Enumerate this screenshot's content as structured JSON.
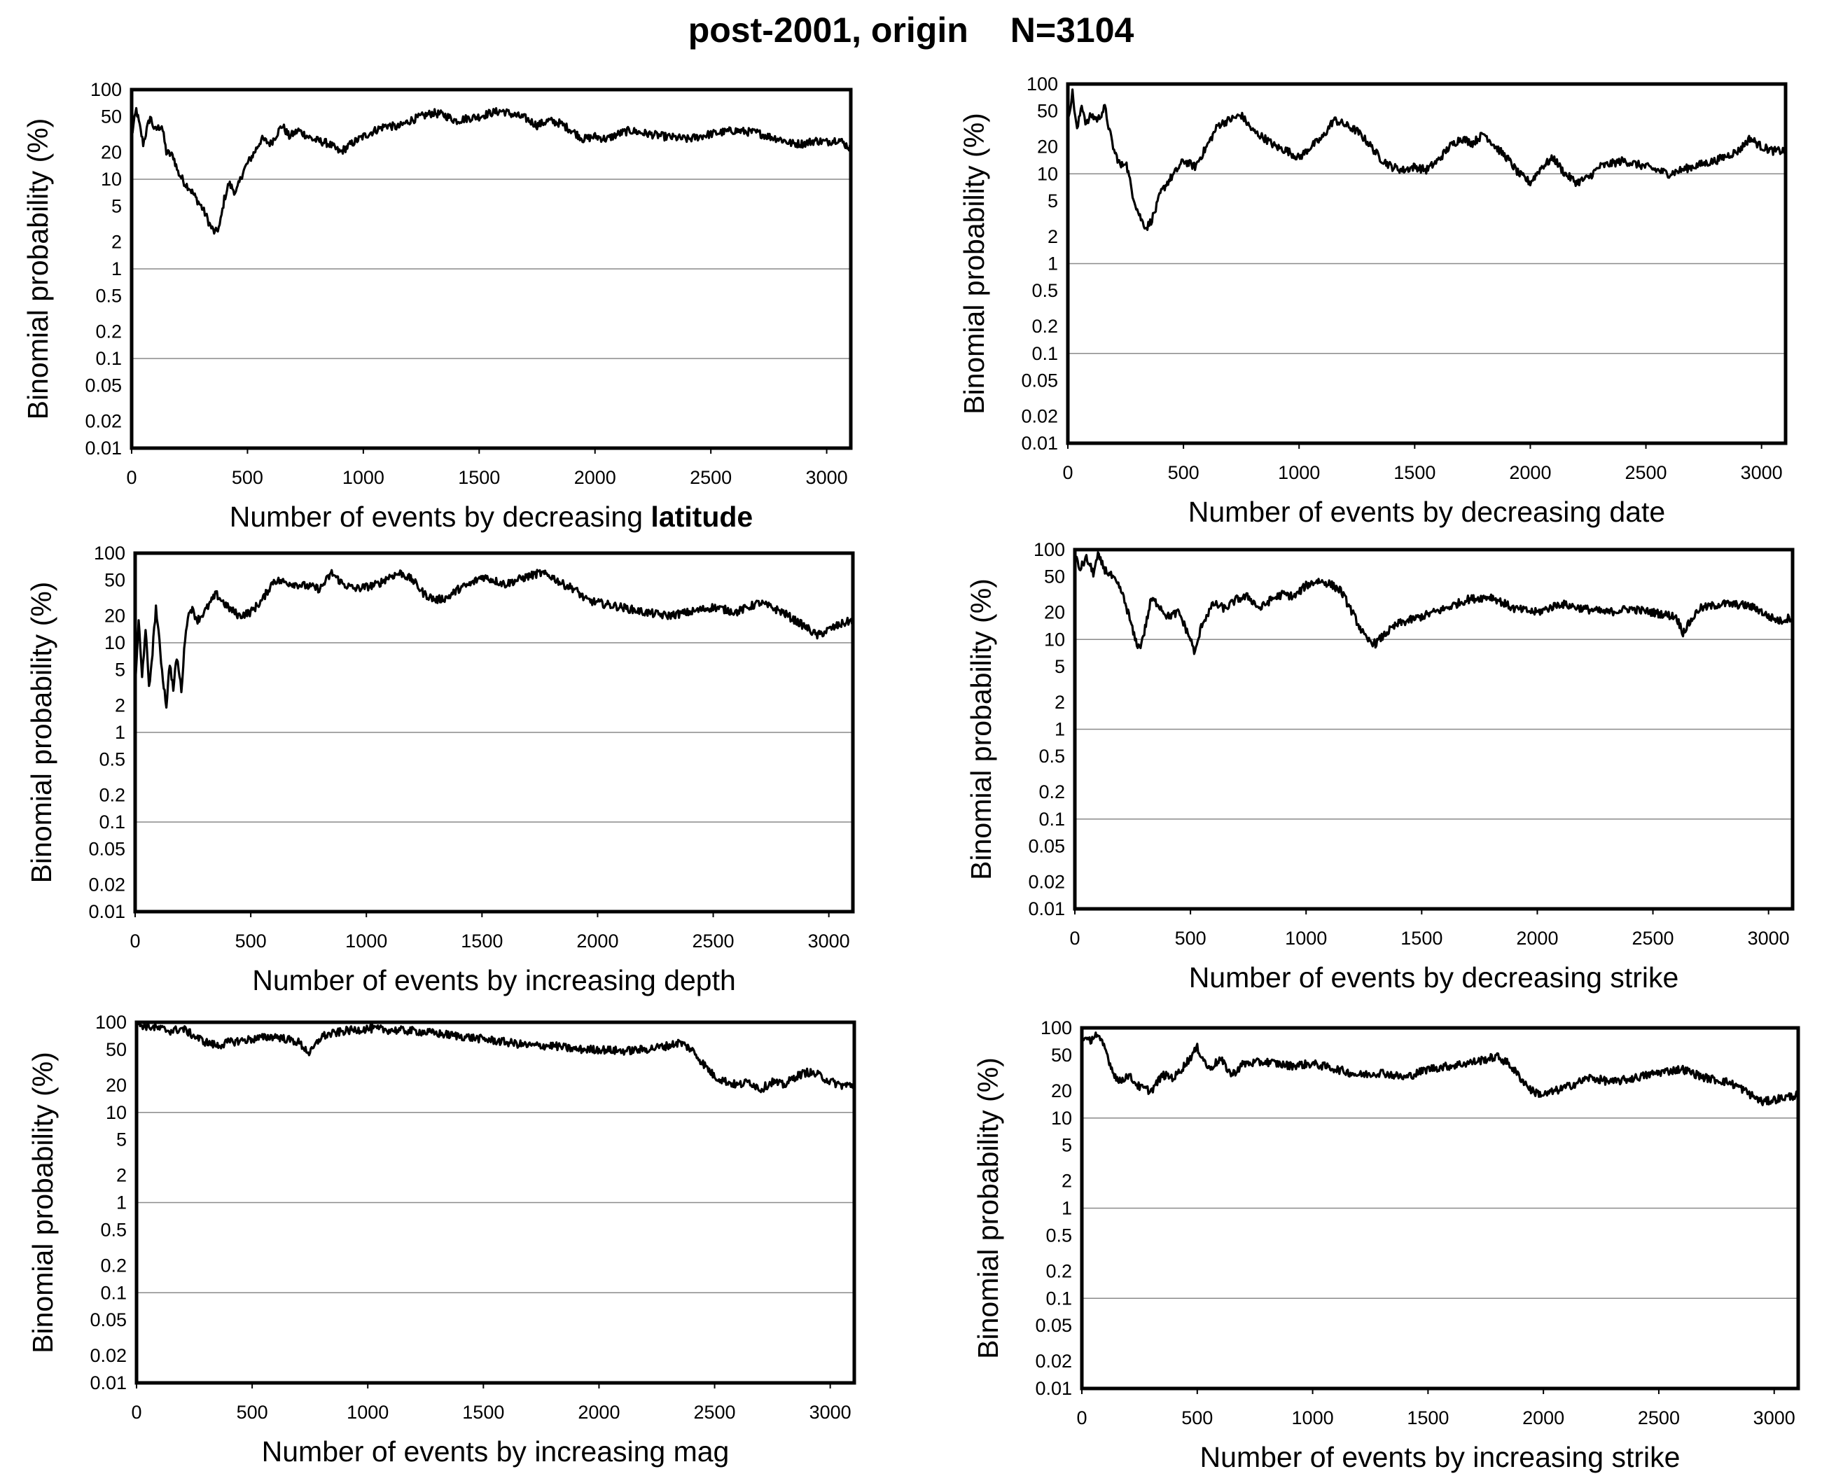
{
  "figure": {
    "title": "post-2001, origin",
    "n_label": "N=3104"
  },
  "chart_data": [
    {
      "type": "line",
      "ylabel": "Binomial probability (%)",
      "xlabel": "Number of events by decreasing",
      "xlabel_bold": "latitude",
      "xlim": [
        0,
        3104
      ],
      "ylim": [
        0.01,
        100
      ],
      "yscale": "log",
      "xticks": [
        "0",
        "500",
        "1000",
        "1500",
        "2000",
        "2500",
        "3000"
      ],
      "yticks": [
        "100",
        "50",
        "20",
        "10",
        "5",
        "2",
        "1",
        "0.5",
        "0.2",
        "0.1",
        "0.05",
        "0.02",
        "0.01"
      ],
      "gridlines_y": [
        10,
        1,
        0.1
      ],
      "series": [
        {
          "x": [
            0,
            20,
            50,
            80,
            100,
            130,
            150,
            180,
            200,
            230,
            250,
            280,
            300,
            320,
            340,
            360,
            380,
            400,
            420,
            450,
            480,
            500,
            530,
            560,
            600,
            650,
            680,
            720,
            780,
            850,
            900,
            950,
            1000,
            1050,
            1100,
            1150,
            1200,
            1250,
            1300,
            1350,
            1400,
            1450,
            1500,
            1550,
            1600,
            1650,
            1700,
            1750,
            1800,
            1850,
            1900,
            1950,
            2000,
            2050,
            2100,
            2150,
            2200,
            2300,
            2400,
            2500,
            2600,
            2700,
            2750,
            2800,
            2850,
            2900,
            2950,
            3000,
            3050,
            3104
          ],
          "y": [
            30,
            60,
            25,
            50,
            35,
            40,
            20,
            18,
            12,
            9,
            8,
            6,
            5,
            4,
            3,
            2.5,
            3,
            6,
            9,
            7,
            12,
            15,
            20,
            28,
            25,
            40,
            30,
            35,
            28,
            25,
            20,
            25,
            30,
            35,
            40,
            38,
            45,
            50,
            55,
            52,
            45,
            48,
            50,
            55,
            58,
            52,
            48,
            40,
            45,
            42,
            35,
            28,
            30,
            28,
            32,
            35,
            33,
            30,
            28,
            32,
            35,
            33,
            30,
            28,
            25,
            25,
            27,
            26,
            28,
            22
          ]
        }
      ]
    },
    {
      "type": "line",
      "ylabel": "Binomial probability (%)",
      "xlabel": "Number of events by decreasing date",
      "xlabel_bold": "",
      "xlim": [
        0,
        3104
      ],
      "ylim": [
        0.01,
        100
      ],
      "yscale": "log",
      "xticks": [
        "0",
        "500",
        "1000",
        "1500",
        "2000",
        "2500",
        "3000"
      ],
      "yticks": [
        "100",
        "50",
        "20",
        "10",
        "5",
        "2",
        "1",
        "0.5",
        "0.2",
        "0.1",
        "0.05",
        "0.02",
        "0.01"
      ],
      "gridlines_y": [
        10,
        1,
        0.1
      ],
      "series": [
        {
          "x": [
            0,
            20,
            40,
            60,
            80,
            100,
            130,
            160,
            180,
            200,
            230,
            250,
            280,
            300,
            320,
            340,
            360,
            380,
            400,
            430,
            460,
            500,
            550,
            600,
            650,
            700,
            750,
            800,
            850,
            900,
            950,
            1000,
            1050,
            1100,
            1150,
            1200,
            1250,
            1300,
            1350,
            1400,
            1450,
            1500,
            1550,
            1600,
            1650,
            1700,
            1750,
            1800,
            1850,
            1900,
            1950,
            2000,
            2050,
            2100,
            2150,
            2200,
            2250,
            2300,
            2400,
            2500,
            2600,
            2700,
            2800,
            2900,
            2950,
            3000,
            3050,
            3104
          ],
          "y": [
            40,
            80,
            30,
            60,
            35,
            45,
            40,
            55,
            30,
            18,
            12,
            14,
            6,
            4,
            3,
            2.5,
            3,
            4,
            6,
            8,
            10,
            14,
            12,
            20,
            35,
            40,
            45,
            30,
            25,
            20,
            18,
            15,
            20,
            25,
            40,
            35,
            30,
            22,
            15,
            12,
            11,
            12,
            11,
            14,
            20,
            25,
            22,
            28,
            20,
            15,
            10,
            8,
            12,
            15,
            10,
            8,
            9,
            12,
            14,
            12,
            10,
            12,
            14,
            18,
            25,
            20,
            18,
            18
          ]
        }
      ]
    },
    {
      "type": "line",
      "ylabel": "Binomial probability (%)",
      "xlabel": "Number of events by increasing depth",
      "xlabel_bold": "",
      "xlim": [
        0,
        3104
      ],
      "ylim": [
        0.01,
        100
      ],
      "yscale": "log",
      "xticks": [
        "0",
        "500",
        "1000",
        "1500",
        "2000",
        "2500",
        "3000"
      ],
      "yticks": [
        "100",
        "50",
        "20",
        "10",
        "5",
        "2",
        "1",
        "0.5",
        "0.2",
        "0.1",
        "0.05",
        "0.02",
        "0.01"
      ],
      "gridlines_y": [
        10,
        1,
        0.1
      ],
      "series": [
        {
          "x": [
            0,
            15,
            30,
            45,
            60,
            75,
            90,
            105,
            120,
            135,
            150,
            165,
            180,
            200,
            220,
            240,
            270,
            300,
            350,
            400,
            450,
            500,
            550,
            600,
            700,
            800,
            850,
            900,
            950,
            1000,
            1050,
            1100,
            1150,
            1200,
            1250,
            1300,
            1350,
            1400,
            1450,
            1500,
            1550,
            1600,
            1650,
            1700,
            1750,
            1800,
            1850,
            1900,
            1950,
            2000,
            2100,
            2200,
            2300,
            2400,
            2500,
            2600,
            2700,
            2800,
            2850,
            2900,
            2950,
            3000,
            3050,
            3104
          ],
          "y": [
            3,
            18,
            4,
            15,
            3,
            8,
            25,
            10,
            4,
            2,
            6,
            3,
            7,
            3,
            15,
            25,
            18,
            22,
            35,
            25,
            20,
            22,
            30,
            50,
            45,
            40,
            60,
            45,
            40,
            42,
            45,
            55,
            60,
            50,
            35,
            30,
            32,
            40,
            45,
            55,
            50,
            45,
            50,
            55,
            60,
            55,
            45,
            40,
            30,
            28,
            25,
            22,
            20,
            22,
            25,
            22,
            28,
            22,
            18,
            15,
            12,
            14,
            16,
            18
          ]
        }
      ]
    },
    {
      "type": "line",
      "ylabel": "Binomial probability (%)",
      "xlabel": "Number of events by decreasing strike",
      "xlabel_bold": "",
      "xlim": [
        0,
        3104
      ],
      "ylim": [
        0.01,
        100
      ],
      "yscale": "log",
      "xticks": [
        "0",
        "500",
        "1000",
        "1500",
        "2000",
        "2500",
        "3000"
      ],
      "yticks": [
        "100",
        "50",
        "20",
        "10",
        "5",
        "2",
        "1",
        "0.5",
        "0.2",
        "0.1",
        "0.05",
        "0.02",
        "0.01"
      ],
      "gridlines_y": [
        10,
        1,
        0.1
      ],
      "series": [
        {
          "x": [
            0,
            20,
            50,
            80,
            100,
            130,
            160,
            200,
            230,
            260,
            280,
            300,
            330,
            360,
            400,
            450,
            500,
            520,
            550,
            600,
            650,
            700,
            750,
            800,
            850,
            900,
            950,
            1000,
            1050,
            1100,
            1150,
            1200,
            1230,
            1260,
            1300,
            1350,
            1400,
            1500,
            1600,
            1700,
            1800,
            1900,
            2000,
            2100,
            2200,
            2300,
            2400,
            2500,
            2600,
            2630,
            2700,
            2800,
            2900,
            2950,
            3000,
            3050,
            3104
          ],
          "y": [
            90,
            60,
            80,
            55,
            85,
            60,
            50,
            35,
            20,
            10,
            8,
            12,
            28,
            25,
            18,
            20,
            10,
            7,
            15,
            25,
            22,
            28,
            30,
            22,
            28,
            32,
            30,
            40,
            45,
            42,
            35,
            20,
            14,
            10,
            9,
            12,
            15,
            18,
            22,
            28,
            30,
            22,
            20,
            25,
            22,
            20,
            22,
            20,
            18,
            12,
            22,
            25,
            24,
            22,
            18,
            16,
            18
          ]
        }
      ]
    },
    {
      "type": "line",
      "ylabel": "Binomial probability (%)",
      "xlabel": "Number of events by increasing mag",
      "xlabel_bold": "",
      "xlim": [
        0,
        3104
      ],
      "ylim": [
        0.01,
        100
      ],
      "yscale": "log",
      "xticks": [
        "0",
        "500",
        "1000",
        "1500",
        "2000",
        "2500",
        "3000"
      ],
      "yticks": [
        "100",
        "50",
        "20",
        "10",
        "5",
        "2",
        "1",
        "0.5",
        "0.2",
        "0.1",
        "0.05",
        "0.02",
        "0.01"
      ],
      "gridlines_y": [
        10,
        1,
        0.1
      ],
      "series": [
        {
          "x": [
            0,
            50,
            100,
            150,
            200,
            250,
            300,
            350,
            400,
            500,
            600,
            700,
            750,
            800,
            900,
            1000,
            1100,
            1200,
            1300,
            1400,
            1500,
            1600,
            1700,
            1800,
            1900,
            2000,
            2100,
            2200,
            2300,
            2350,
            2400,
            2450,
            2500,
            2550,
            2600,
            2650,
            2700,
            2750,
            2800,
            2850,
            2900,
            2950,
            3000,
            3050,
            3104
          ],
          "y": [
            95,
            90,
            85,
            80,
            85,
            70,
            60,
            55,
            60,
            65,
            70,
            60,
            45,
            70,
            80,
            85,
            82,
            80,
            75,
            70,
            65,
            60,
            55,
            55,
            50,
            50,
            48,
            50,
            55,
            60,
            50,
            35,
            25,
            22,
            20,
            22,
            18,
            22,
            20,
            25,
            28,
            26,
            22,
            20,
            20
          ]
        }
      ]
    },
    {
      "type": "line",
      "ylabel": "Binomial probability (%)",
      "xlabel": "Number of events by increasing strike",
      "xlabel_bold": "",
      "xlim": [
        0,
        3104
      ],
      "ylim": [
        0.01,
        100
      ],
      "yscale": "log",
      "xticks": [
        "0",
        "500",
        "1000",
        "1500",
        "2000",
        "2500",
        "3000"
      ],
      "yticks": [
        "100",
        "50",
        "20",
        "10",
        "5",
        "2",
        "1",
        "0.5",
        "0.2",
        "0.1",
        "0.05",
        "0.02",
        "0.01"
      ],
      "gridlines_y": [
        10,
        1,
        0.1
      ],
      "series": [
        {
          "x": [
            0,
            30,
            60,
            100,
            130,
            160,
            200,
            250,
            300,
            350,
            400,
            450,
            500,
            550,
            600,
            650,
            700,
            800,
            900,
            1000,
            1100,
            1200,
            1300,
            1400,
            1500,
            1600,
            1700,
            1800,
            1850,
            1900,
            1950,
            2000,
            2100,
            2200,
            2300,
            2400,
            2500,
            2600,
            2700,
            2800,
            2850,
            2900,
            2950,
            3000,
            3050,
            3104
          ],
          "y": [
            80,
            70,
            85,
            60,
            35,
            25,
            30,
            22,
            20,
            30,
            28,
            40,
            60,
            35,
            45,
            30,
            40,
            42,
            38,
            40,
            35,
            30,
            32,
            28,
            35,
            38,
            42,
            48,
            40,
            28,
            20,
            18,
            22,
            28,
            25,
            28,
            32,
            35,
            28,
            25,
            22,
            18,
            15,
            16,
            17,
            18
          ]
        }
      ]
    }
  ]
}
